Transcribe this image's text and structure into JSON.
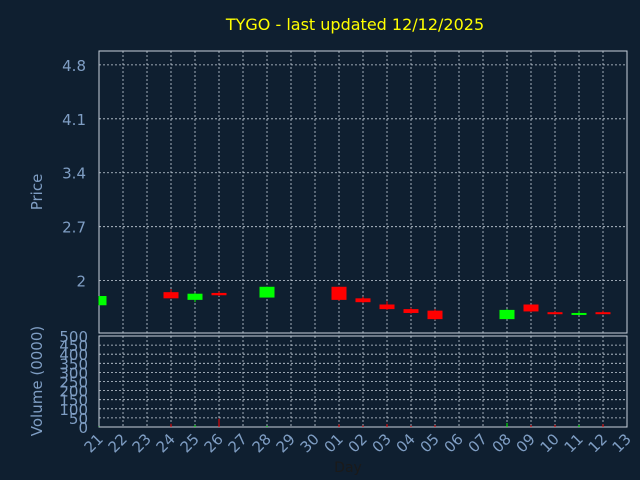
{
  "chart_data": {
    "type": "candlestick",
    "title": "TYGO - last updated 12/12/2025",
    "xlabel": "Day",
    "price_axis": {
      "ylabel": "Price",
      "ticks": [
        2,
        2.7,
        3.4,
        4.1,
        4.8
      ],
      "tick_labels": [
        "2",
        "2.7",
        "3.4",
        "4.1",
        "4.8"
      ],
      "ylim": [
        1.32,
        4.98
      ]
    },
    "volume_axis": {
      "ylabel": "Volume (0000)",
      "ticks": [
        0,
        50,
        100,
        150,
        200,
        250,
        300,
        350,
        400,
        450,
        500
      ],
      "tick_labels": [
        "0",
        "50",
        "100",
        "150",
        "200",
        "250",
        "300",
        "350",
        "400",
        "450",
        "500"
      ],
      "ylim": [
        0,
        500
      ]
    },
    "x_labels": [
      "21",
      "22",
      "23",
      "24",
      "25",
      "26",
      "27",
      "28",
      "29",
      "30",
      "01",
      "02",
      "03",
      "04",
      "05",
      "06",
      "07",
      "08",
      "09",
      "10",
      "11",
      "12",
      "13"
    ],
    "grid": true,
    "colors": {
      "up": "#00ff00",
      "down": "#ff0000",
      "background": "#0f1f30",
      "plot": "#0f1f30",
      "title": "#ffff00",
      "axis_text": "#7f9ec4"
    },
    "candles": [
      {
        "day": "21",
        "open": 1.68,
        "high": 1.8,
        "low": 1.68,
        "close": 1.8,
        "volume": 2
      },
      {
        "day": "24",
        "open": 1.85,
        "high": 1.89,
        "low": 1.77,
        "close": 1.77,
        "volume": 18
      },
      {
        "day": "25",
        "open": 1.75,
        "high": 1.84,
        "low": 1.72,
        "close": 1.83,
        "volume": 10
      },
      {
        "day": "26",
        "open": 1.84,
        "high": 1.86,
        "low": 1.8,
        "close": 1.81,
        "volume": 45
      },
      {
        "day": "28",
        "open": 1.78,
        "high": 1.92,
        "low": 1.78,
        "close": 1.92,
        "volume": 6
      },
      {
        "day": "01",
        "open": 1.92,
        "high": 1.92,
        "low": 1.74,
        "close": 1.75,
        "volume": 14
      },
      {
        "day": "02",
        "open": 1.77,
        "high": 1.79,
        "low": 1.71,
        "close": 1.72,
        "volume": 8
      },
      {
        "day": "03",
        "open": 1.69,
        "high": 1.73,
        "low": 1.62,
        "close": 1.63,
        "volume": 16
      },
      {
        "day": "04",
        "open": 1.63,
        "high": 1.65,
        "low": 1.57,
        "close": 1.58,
        "volume": 7
      },
      {
        "day": "05",
        "open": 1.61,
        "high": 1.63,
        "low": 1.49,
        "close": 1.5,
        "volume": 10
      },
      {
        "day": "08",
        "open": 1.5,
        "high": 1.63,
        "low": 1.5,
        "close": 1.62,
        "volume": 22
      },
      {
        "day": "09",
        "open": 1.69,
        "high": 1.69,
        "low": 1.59,
        "close": 1.6,
        "volume": 10
      },
      {
        "day": "10",
        "open": 1.59,
        "high": 1.6,
        "low": 1.56,
        "close": 1.57,
        "volume": 12
      },
      {
        "day": "11",
        "open": 1.57,
        "high": 1.61,
        "low": 1.55,
        "close": 1.58,
        "volume": 11
      },
      {
        "day": "12",
        "open": 1.59,
        "high": 1.61,
        "low": 1.57,
        "close": 1.58,
        "volume": 15
      }
    ]
  }
}
